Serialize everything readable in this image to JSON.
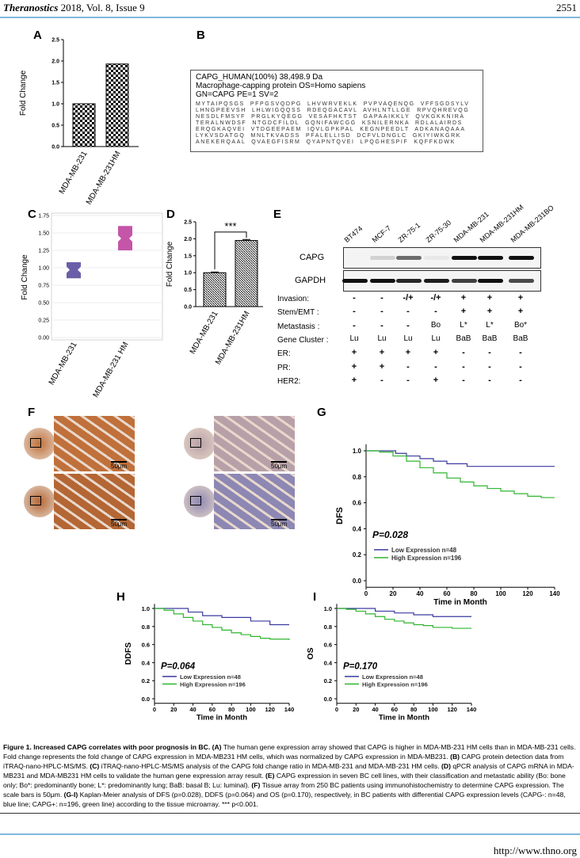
{
  "header": {
    "journal": "Theranostics",
    "year_vol": "2018, Vol. 8, Issue 9",
    "page": "2551"
  },
  "panels": {
    "A": "A",
    "B": "B",
    "C": "C",
    "D": "D",
    "E": "E",
    "F": "F",
    "G": "G",
    "H": "H",
    "I": "I"
  },
  "chart_data": [
    {
      "id": "A",
      "type": "bar",
      "categories": [
        "MDA-MB-231",
        "MDA-MB-231HM"
      ],
      "values": [
        1.0,
        1.93
      ],
      "ylabel": "Fold Change",
      "ylim": [
        0,
        2.5
      ],
      "yticks": [
        "0.0",
        "0.5",
        "1.0",
        "1.5",
        "2.0",
        "2.5"
      ]
    },
    {
      "id": "C",
      "type": "box",
      "categories": [
        "MDA-MB-231",
        "MDA-MB-231 HM"
      ],
      "boxes": [
        {
          "low": 0.85,
          "median": 0.97,
          "high": 1.08,
          "color": "#6b5ea8"
        },
        {
          "low": 1.25,
          "median": 1.42,
          "high": 1.6,
          "color": "#c455a8"
        }
      ],
      "ylabel": "Fold Change",
      "ylim": [
        0,
        1.75
      ],
      "yticks": [
        "0.00",
        "0.25",
        "0.50",
        "0.75",
        "1.00",
        "1.25",
        "1.50",
        "1.75"
      ]
    },
    {
      "id": "D",
      "type": "bar",
      "categories": [
        "MDA-MB-231",
        "MDA-MB-231HM"
      ],
      "values": [
        1.0,
        1.95
      ],
      "errors": [
        0.02,
        0.03
      ],
      "ylabel": "Fold Change",
      "ylim": [
        0,
        2.5
      ],
      "yticks": [
        "0.0",
        "0.5",
        "1.0",
        "1.5",
        "2.0",
        "2.5"
      ],
      "annotation": "***"
    },
    {
      "id": "G",
      "type": "line",
      "ylabel": "DFS",
      "xlabel": "Time in Month",
      "pvalue": "P=0.028",
      "xlim": [
        0,
        140
      ],
      "ylim": [
        0,
        1
      ],
      "xticks": [
        "0",
        "20",
        "40",
        "60",
        "80",
        "100",
        "120",
        "140"
      ],
      "yticks": [
        "0.0",
        "0.2",
        "0.4",
        "0.6",
        "0.8",
        "1.0"
      ],
      "series": [
        {
          "name": "Low  Expression n=48",
          "color": "#3a3aa0",
          "points": [
            [
              0,
              1
            ],
            [
              15,
              1
            ],
            [
              22,
              0.98
            ],
            [
              30,
              0.96
            ],
            [
              40,
              0.94
            ],
            [
              50,
              0.92
            ],
            [
              60,
              0.9
            ],
            [
              75,
              0.88
            ],
            [
              140,
              0.88
            ]
          ]
        },
        {
          "name": "High Expression n=196",
          "color": "#2fb52f",
          "points": [
            [
              0,
              1
            ],
            [
              10,
              0.99
            ],
            [
              20,
              0.96
            ],
            [
              30,
              0.92
            ],
            [
              40,
              0.87
            ],
            [
              50,
              0.83
            ],
            [
              60,
              0.79
            ],
            [
              70,
              0.76
            ],
            [
              80,
              0.73
            ],
            [
              90,
              0.71
            ],
            [
              100,
              0.69
            ],
            [
              110,
              0.67
            ],
            [
              120,
              0.65
            ],
            [
              130,
              0.64
            ],
            [
              140,
              0.64
            ]
          ]
        }
      ]
    },
    {
      "id": "H",
      "type": "line",
      "ylabel": "DDFS",
      "xlabel": "Time in Month",
      "pvalue": "P=0.064",
      "xlim": [
        0,
        140
      ],
      "ylim": [
        0,
        1
      ],
      "xticks": [
        "0",
        "20",
        "40",
        "60",
        "80",
        "100",
        "120",
        "140"
      ],
      "yticks": [
        "0.0",
        "0.2",
        "0.4",
        "0.6",
        "0.8",
        "1.0"
      ],
      "series": [
        {
          "name": "Low  Expression n=48",
          "color": "#3a3aa0",
          "points": [
            [
              0,
              1
            ],
            [
              25,
              1
            ],
            [
              35,
              0.96
            ],
            [
              50,
              0.92
            ],
            [
              70,
              0.9
            ],
            [
              100,
              0.86
            ],
            [
              120,
              0.82
            ],
            [
              140,
              0.82
            ]
          ]
        },
        {
          "name": "High Expression n=196",
          "color": "#2fb52f",
          "points": [
            [
              0,
              1
            ],
            [
              10,
              0.98
            ],
            [
              20,
              0.94
            ],
            [
              30,
              0.9
            ],
            [
              40,
              0.86
            ],
            [
              50,
              0.82
            ],
            [
              60,
              0.79
            ],
            [
              70,
              0.76
            ],
            [
              80,
              0.73
            ],
            [
              90,
              0.71
            ],
            [
              100,
              0.69
            ],
            [
              110,
              0.67
            ],
            [
              120,
              0.66
            ],
            [
              140,
              0.65
            ]
          ]
        }
      ]
    },
    {
      "id": "I",
      "type": "line",
      "ylabel": "OS",
      "xlabel": "Time in Month",
      "pvalue": "P=0.170",
      "xlim": [
        0,
        140
      ],
      "ylim": [
        0,
        1
      ],
      "xticks": [
        "0",
        "20",
        "40",
        "60",
        "80",
        "100",
        "120",
        "140"
      ],
      "yticks": [
        "0.0",
        "0.2",
        "0.4",
        "0.6",
        "0.8",
        "1.0"
      ],
      "series": [
        {
          "name": "Low  Expression n=48",
          "color": "#3a3aa0",
          "points": [
            [
              0,
              1
            ],
            [
              30,
              1
            ],
            [
              40,
              0.97
            ],
            [
              60,
              0.95
            ],
            [
              80,
              0.93
            ],
            [
              100,
              0.91
            ],
            [
              140,
              0.91
            ]
          ]
        },
        {
          "name": "High Expression n=196",
          "color": "#2fb52f",
          "points": [
            [
              0,
              1
            ],
            [
              10,
              0.99
            ],
            [
              20,
              0.97
            ],
            [
              30,
              0.94
            ],
            [
              40,
              0.91
            ],
            [
              50,
              0.88
            ],
            [
              60,
              0.86
            ],
            [
              70,
              0.84
            ],
            [
              80,
              0.82
            ],
            [
              90,
              0.81
            ],
            [
              100,
              0.79
            ],
            [
              120,
              0.78
            ],
            [
              140,
              0.78
            ]
          ]
        }
      ]
    }
  ],
  "panel_b": {
    "title1": "CAPG_HUMAN(100%) 38,498.9 Da",
    "title2": "Macrophage-capping protein OS=Homo sapiens",
    "title3": "GN=CAPG PE=1 SV=2",
    "rows": [
      "MYTAIPQSGS  PFPGSVQDPG  LHVWRVEKLK  PVPVAQENQG  VFFSGDSYLV",
      "LHNGPEEVSH  LHLWIGQQSS  RDEQGACAVL  AVHLNTLLGE  RPVQHREVQG",
      "NESDLFMSYF  PRGLKYQEGG  VESAFHKTST  GAPAAIKKLY  QVKGKKNIRA",
      "TERALNWDSF  NTGDCFILDL  GQNIFAWCGG  KSNILERNKA  RDLALAIRDS",
      "ERQGKAQVEI  VTDGEEPAEM  IQVLGPKPAL  KEGNPEEDLT  ADKANAQAAA",
      "LYKVSDATGQ  MNLTKVADSS  PFALELLISD  DCFVLDNGLC  GKIYIWKGRK",
      "ANEKERQAAL  QVAEGFISRM  QYAPNTQVEI  LPQGHESPIF  KQFFKDWK"
    ]
  },
  "panel_e": {
    "lanes": [
      "BT474",
      "MCF-7",
      "ZR-75-1",
      "ZR-75-30",
      "MDA-MB-231",
      "MDA-MB-231HM",
      "MDA-MB-231BO"
    ],
    "blots": [
      "CAPG",
      "GAPDH"
    ],
    "capg_intensity": [
      0,
      0.15,
      0.6,
      0.05,
      1,
      1,
      1
    ],
    "gapdh_intensity": [
      1,
      1,
      0.9,
      0.95,
      0.8,
      1,
      0.75
    ],
    "rows": [
      {
        "label": "Invasion:",
        "values": [
          "-",
          "-",
          "-/+",
          "-/+",
          "+",
          "+",
          "+"
        ]
      },
      {
        "label": "Stem/EMT :",
        "values": [
          "-",
          "-",
          "-",
          "-",
          "+",
          "+",
          "+"
        ]
      },
      {
        "label": "Metastasis :",
        "values": [
          "-",
          "-",
          "-",
          "Bo",
          "L*",
          "L*",
          "Bo*"
        ]
      },
      {
        "label": "Gene Cluster :",
        "values": [
          "Lu",
          "Lu",
          "Lu",
          "Lu",
          "BaB",
          "BaB",
          "BaB"
        ]
      },
      {
        "label": "ER:",
        "values": [
          "+",
          "+",
          "+",
          "+",
          "-",
          "-",
          "-"
        ]
      },
      {
        "label": "PR:",
        "values": [
          "+",
          "+",
          "-",
          "-",
          "-",
          "-",
          "-"
        ]
      },
      {
        "label": "HER2:",
        "values": [
          "+",
          "-",
          "-",
          "+",
          "-",
          "-",
          "-"
        ]
      }
    ]
  },
  "panel_f": {
    "scale": "50μm"
  },
  "caption": {
    "title": "Figure 1. Increased CAPG correlates with poor prognosis in BC.",
    "parts": [
      {
        "tag": "(A)",
        "text": " The human gene expression array showed that CAPG is higher in MDA-MB-231 HM cells than in MDA-MB-231 cells. Fold change represents the fold change of CAPG expression in MDA-MB231 HM cells, which was normalized by CAPG expression in MDA-MB231. "
      },
      {
        "tag": "(B)",
        "text": " CAPG protein detection data from iTRAQ-nano-HPLC-MS/MS. "
      },
      {
        "tag": "(C)",
        "text": " iTRAQ-nano-HPLC-MS/MS analysis of the CAPG fold change ratio in MDA-MB-231 and MDA-MB-231 HM cells. "
      },
      {
        "tag": "(D)",
        "text": " qPCR analysis of CAPG mRNA in MDA-MB231 and MDA-MB231 HM cells to validate the human gene expression array result. "
      },
      {
        "tag": "(E)",
        "text": " CAPG expression in seven BC cell lines, with their classification and metastatic ability (Bo: bone only; Bo*: predominantly bone; L*: predominantly lung; BaB: basal B; Lu: luminal). "
      },
      {
        "tag": "(F)",
        "text": " Tissue array from 250 BC patients using immunohistochemistry to determine CAPG expression. The scale bars is 50μm. "
      },
      {
        "tag": "(G-I)",
        "text": " Kaplan-Meier analysis of DFS (p=0.028), DDFS (p=0.064) and OS (p=0.170), respectively, in BC patients with differential CAPG expression levels (CAPG-: n=48, blue line; CAPG+: n=196, green line) according to the tissue microarray. *** p<0.001."
      }
    ]
  },
  "footer": {
    "url": "http://www.thno.org"
  }
}
